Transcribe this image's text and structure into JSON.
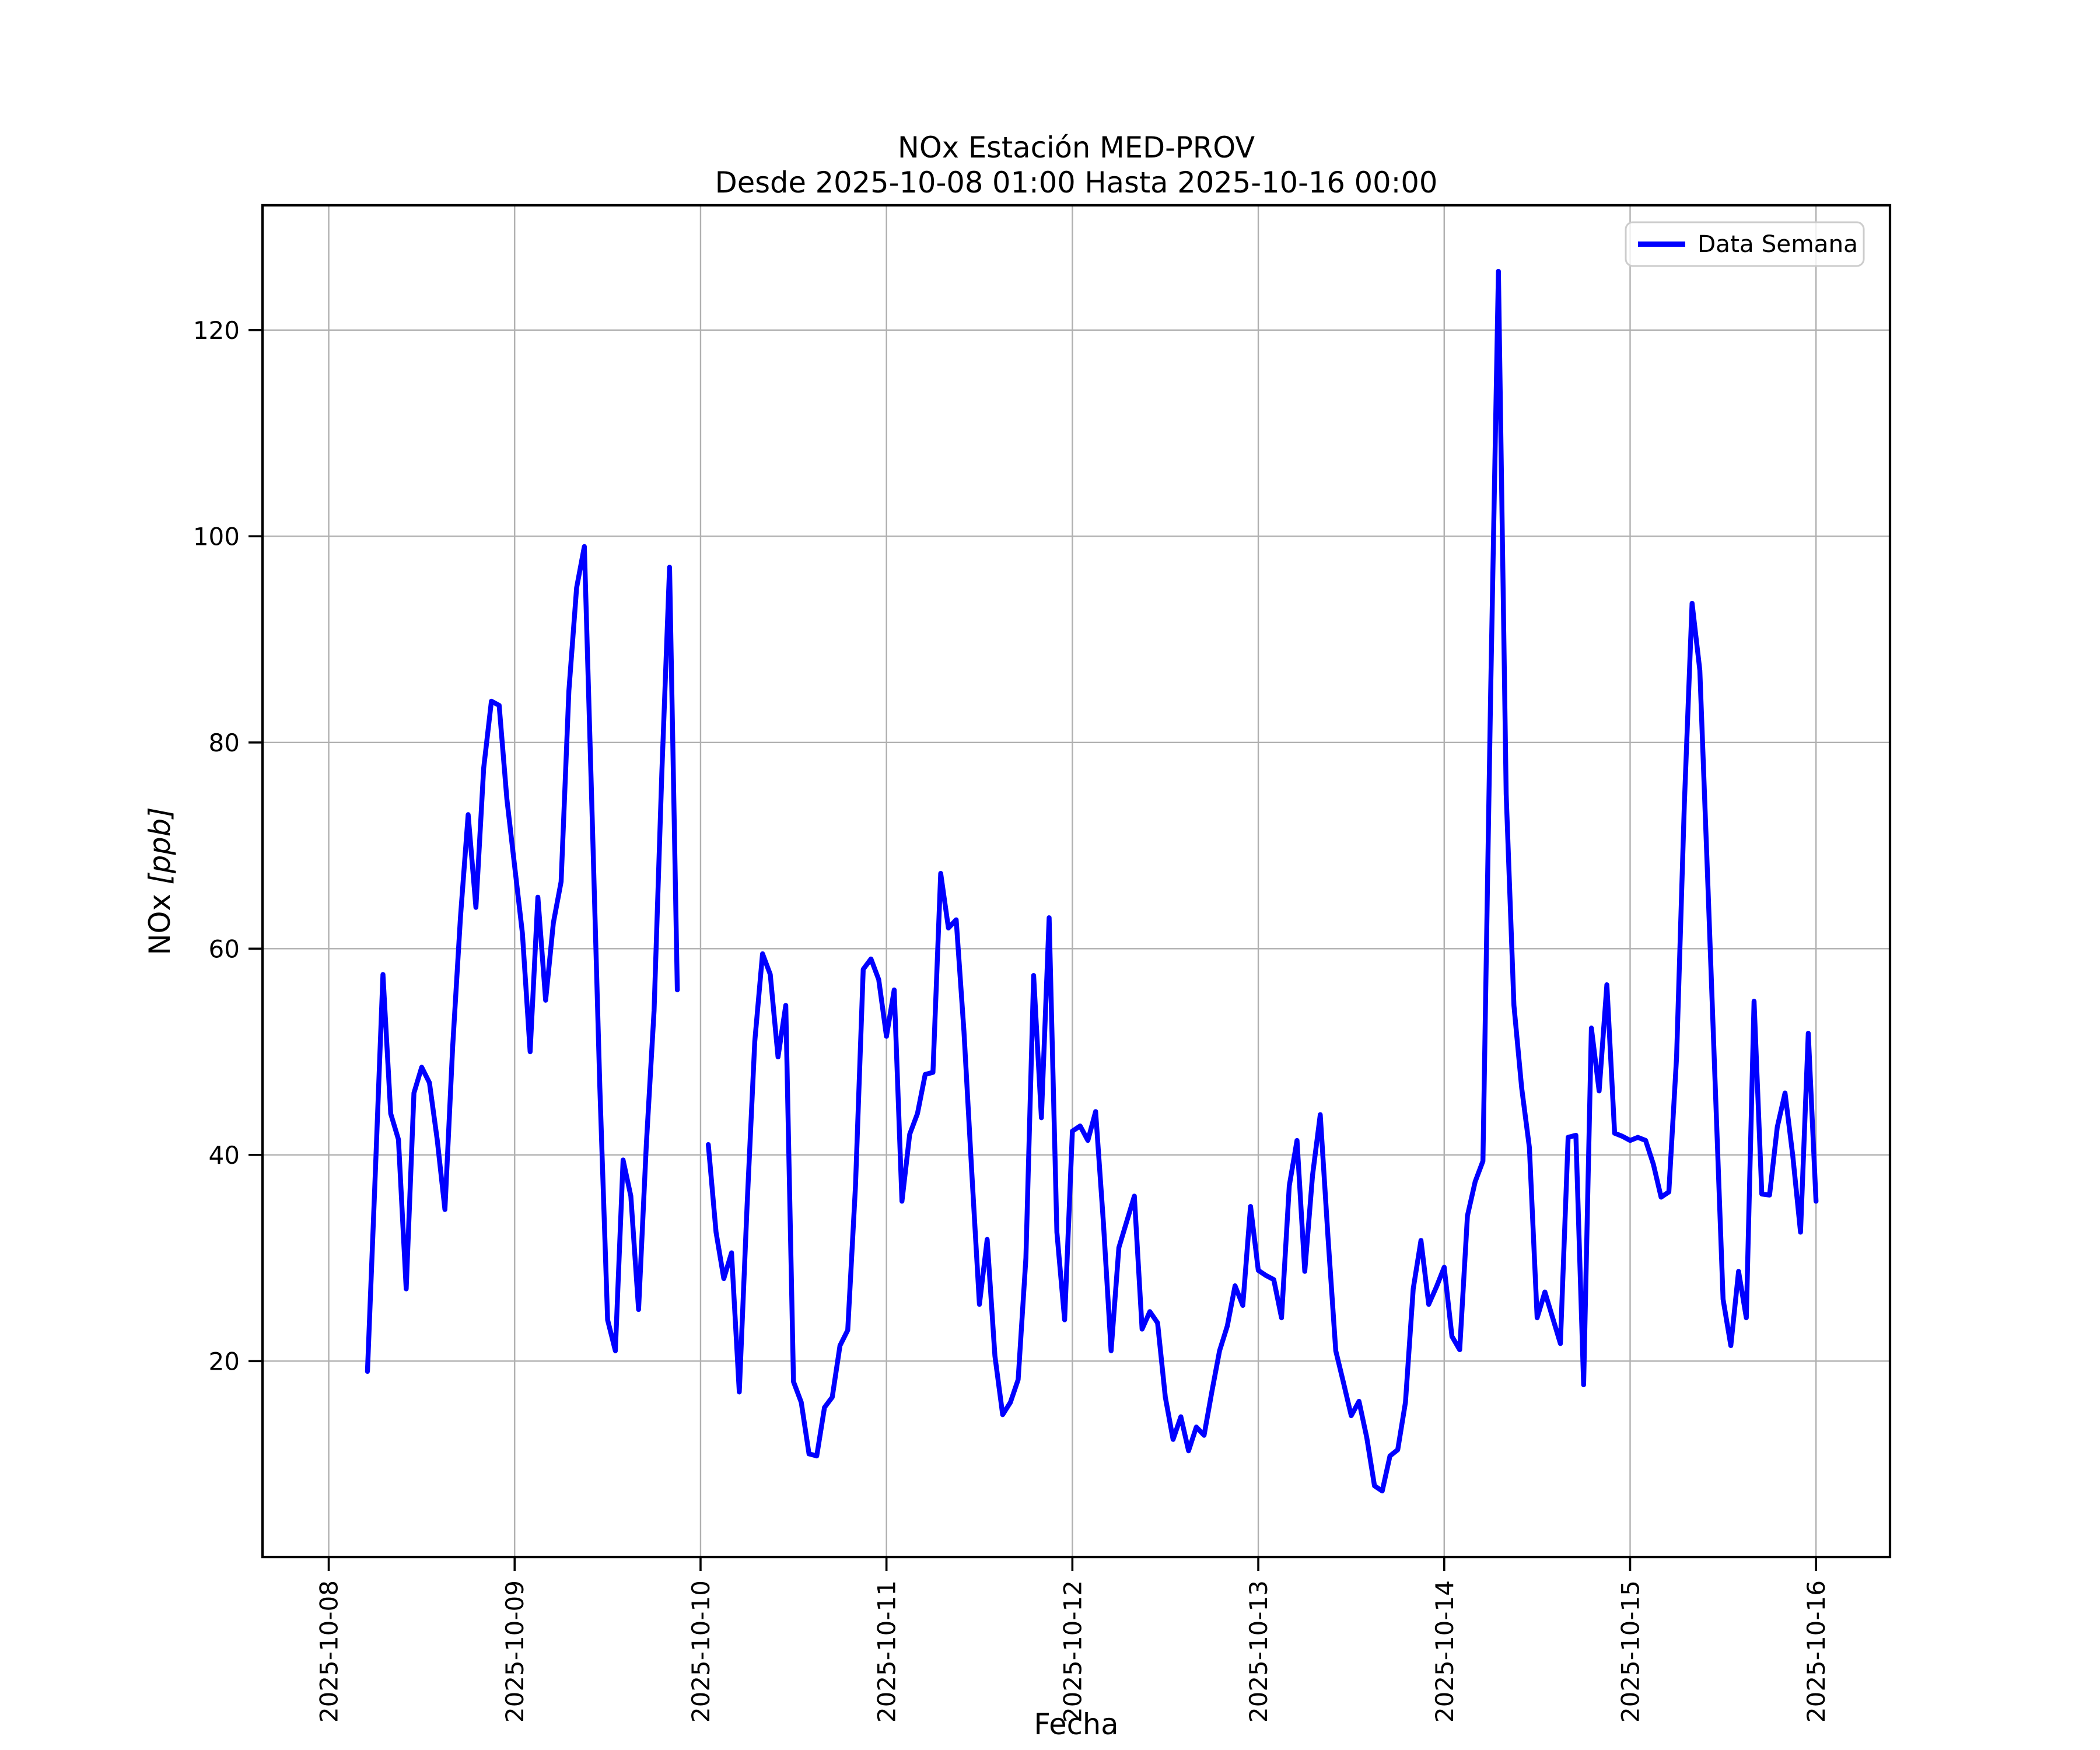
{
  "title": {
    "line1": "NOx Estación MED-PROV",
    "line2": "Desde 2025-10-08 01:00 Hasta 2025-10-16 00:00"
  },
  "axes": {
    "x_label": "Fecha",
    "y_label_prefix": "NOx ",
    "y_label_unit": "[ppb]"
  },
  "legend": {
    "label": "Data Semana"
  },
  "colors": {
    "line": "#0000ff",
    "grid": "#b0b0b0",
    "frame": "#000000",
    "legend_edge": "#cccccc"
  },
  "chart_data": {
    "type": "line",
    "title": "NOx Estación MED-PROV",
    "subtitle": "Desde 2025-10-08 01:00 Hasta 2025-10-16 00:00",
    "xlabel": "Fecha",
    "ylabel": "NOx [ppb]",
    "grid": true,
    "legend_position": "upper right",
    "x_tick_labels": [
      "2025-10-08",
      "2025-10-09",
      "2025-10-10",
      "2025-10-11",
      "2025-10-12",
      "2025-10-13",
      "2025-10-14",
      "2025-10-15",
      "2025-10-16"
    ],
    "x_tick_hours": [
      0,
      24,
      48,
      72,
      96,
      120,
      144,
      168,
      192
    ],
    "y_ticks": [
      20,
      40,
      60,
      80,
      100,
      120
    ],
    "ylim": [
      1.0,
      132.1
    ],
    "xlim_hours": [
      -8.55,
      201.55
    ],
    "series": [
      {
        "name": "Data Semana",
        "color": "#0000ff",
        "x_start": "2025-10-08 01:00",
        "x_step_hours": 1,
        "values": [
          null,
          null,
          null,
          null,
          19,
          38,
          57.5,
          44,
          41.5,
          27,
          46,
          48.5,
          47,
          41.5,
          34.7,
          50.5,
          63,
          73,
          64,
          77.5,
          84,
          83.6,
          74.5,
          68,
          61.5,
          50,
          65,
          55,
          62.5,
          66.5,
          85,
          95,
          99,
          73,
          46.5,
          24,
          21,
          39.5,
          36,
          25,
          41,
          54,
          77,
          97,
          56,
          null,
          null,
          null,
          41,
          32.5,
          28,
          30.5,
          17,
          35,
          51,
          59.5,
          57.5,
          49.5,
          54.5,
          18,
          16,
          11,
          10.8,
          15.5,
          16.5,
          21.5,
          23,
          37,
          58,
          59,
          57,
          51.5,
          56,
          35.5,
          42,
          44,
          47.8,
          48,
          67.3,
          62,
          62.8,
          52,
          38.5,
          25.5,
          31.8,
          20.5,
          14.8,
          16,
          18.2,
          30,
          57.4,
          43.6,
          63,
          32.5,
          24,
          42.3,
          42.8,
          41.4,
          44.2,
          33.5,
          21,
          31,
          33.5,
          36,
          23.1,
          24.8,
          23.7,
          16.5,
          12.4,
          14.6,
          11.3,
          13.6,
          12.8,
          17,
          21,
          23.4,
          27.3,
          25.4,
          35,
          28.8,
          28.3,
          27.9,
          24.2,
          37,
          41.4,
          28.7,
          38,
          43.9,
          32,
          21,
          17.9,
          14.7,
          16.1,
          12.6,
          7.9,
          7.4,
          10.8,
          11.4,
          16,
          27,
          31.7,
          25.5,
          27.2,
          29.1,
          22.4,
          21.1,
          34.1,
          37.4,
          39.4,
          85,
          125.7,
          75,
          54.5,
          46.5,
          40.7,
          24.2,
          26.7,
          24.2,
          21.7,
          41.7,
          41.9,
          17.7,
          52.3,
          46.2,
          56.5,
          42.1,
          41.8,
          41.4,
          41.7,
          41.4,
          39.1,
          35.9,
          36.4,
          49.5,
          74,
          93.5,
          87,
          67,
          46.5,
          26,
          21.5,
          28.7,
          24.2,
          54.9,
          36.2,
          36.1,
          42.7,
          46,
          39.9,
          32.5,
          51.8,
          35.5
        ]
      }
    ]
  }
}
